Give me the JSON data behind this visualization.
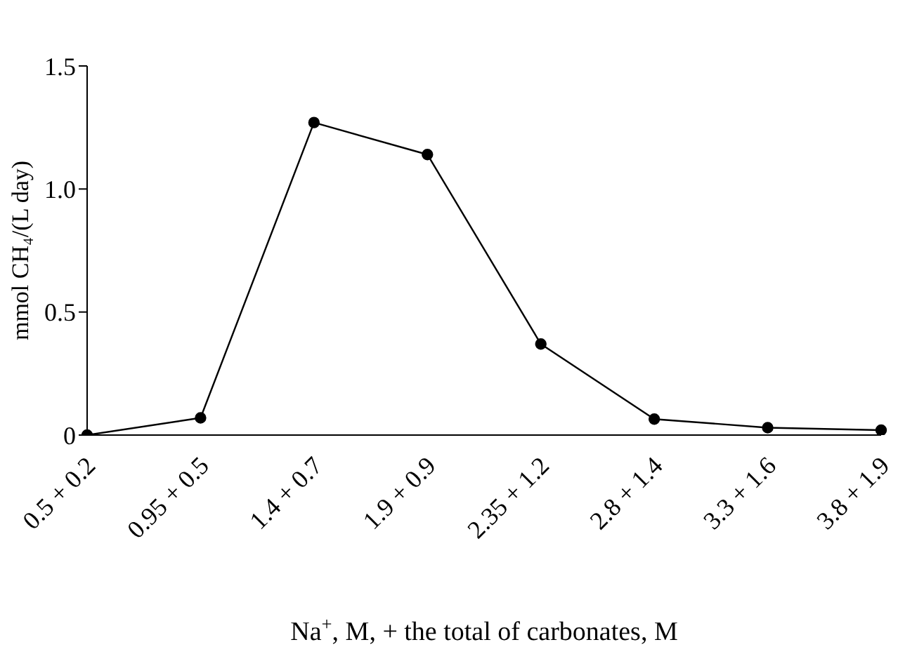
{
  "chart_data": {
    "type": "line",
    "xlabel": "Na$^{+}$, M, + the total of carbonates, M",
    "ylabel": "mmol CH₄/(L day)",
    "categories": [
      "0.5 + 0.2",
      "0.95 + 0.5",
      "1.4 + 0.7",
      "1.9 + 0.9",
      "2.35 + 1.2",
      "2.8 + 1.4",
      "3.3 + 1.6",
      "3.8 + 1.9"
    ],
    "series": [
      {
        "color": "#000000",
        "values": [
          0,
          0.07,
          1.27,
          1.14,
          0.37,
          0.065,
          0.03,
          0.02
        ]
      }
    ],
    "ylim": [
      0,
      1.5
    ],
    "yticks": [
      0,
      0.5,
      {
        "value": 1,
        "label": "1.0"
      },
      1.5
    ],
    "grid": false,
    "legend": false,
    "marker": "circle",
    "line_style": "solid"
  }
}
